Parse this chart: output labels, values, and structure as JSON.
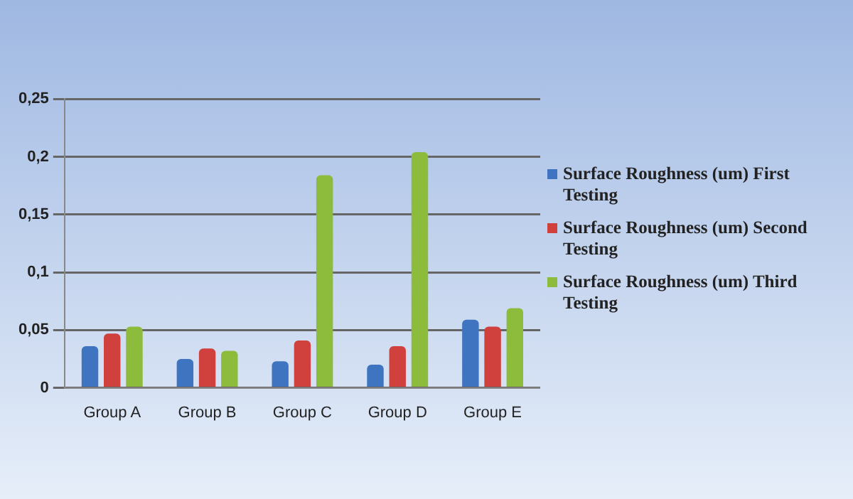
{
  "chart_data": {
    "type": "bar",
    "categories": [
      "Group A",
      "Group B",
      "Group C",
      "Group D",
      "Group E"
    ],
    "series": [
      {
        "name": "Surface Roughness (um) First Testing",
        "color": "#3f75c0",
        "values": [
          0.036,
          0.025,
          0.023,
          0.02,
          0.059
        ]
      },
      {
        "name": "Surface Roughness (um) Second Testing",
        "color": "#d0403c",
        "values": [
          0.047,
          0.034,
          0.041,
          0.036,
          0.053
        ]
      },
      {
        "name": "Surface Roughness (um) Third Testing",
        "color": "#8dbb3c",
        "values": [
          0.053,
          0.032,
          0.184,
          0.204,
          0.069
        ]
      }
    ],
    "ylim": [
      0,
      0.25
    ],
    "yticks": [
      {
        "value": 0,
        "label": "0"
      },
      {
        "value": 0.05,
        "label": "0,05"
      },
      {
        "value": 0.1,
        "label": "0,1"
      },
      {
        "value": 0.15,
        "label": "0,15"
      },
      {
        "value": 0.2,
        "label": "0,2"
      },
      {
        "value": 0.25,
        "label": "0,25"
      }
    ],
    "grid": "y",
    "legend": "right"
  }
}
